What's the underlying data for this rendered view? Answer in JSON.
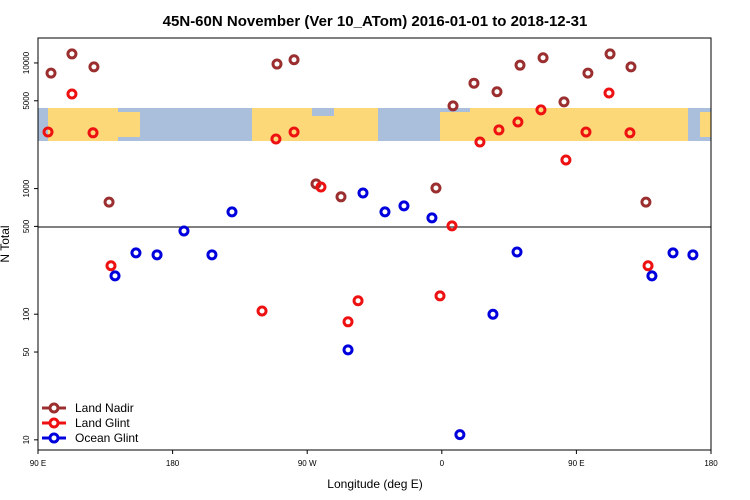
{
  "chart_data": {
    "type": "scatter",
    "title": "45N-60N November (Ver 10_ATom)   2016-01-01 to 2018-12-31",
    "x_label": "Longitude (deg E)",
    "y_label": "N Total",
    "log_y": true,
    "legend": "bottom-left",
    "xlim": [
      90,
      540
    ],
    "xticks": [
      {
        "value": 90,
        "label": "90 E"
      },
      180,
      {
        "value": 270,
        "label": "90 W"
      },
      {
        "value": 360,
        "label": "0"
      },
      {
        "value": 450,
        "label": "90 E"
      },
      {
        "value": 540,
        "label": "180"
      }
    ],
    "ylim": [
      8.3,
      15800
    ],
    "yticks": [
      10,
      50,
      100,
      500,
      1000,
      5000,
      10000
    ],
    "series": [
      {
        "name": "Land Nadir",
        "color": "#9b2f2f",
        "x": [
          98.7,
          112.7,
          127.4,
          137.5,
          249.8,
          261.2,
          275.9,
          292.6,
          356.1,
          367.5,
          381.5,
          396.9,
          412.3,
          427.7,
          441.7,
          457.7,
          472.5,
          486.5,
          496.5
        ],
        "values": [
          8300,
          11800,
          9300,
          780,
          9800,
          10600,
          1090,
          860,
          1010,
          4550,
          6900,
          5900,
          9600,
          11000,
          4900,
          8300,
          11800,
          9300,
          780
        ]
      },
      {
        "name": "Land Glint",
        "color": "#ee1111",
        "x": [
          96.7,
          112.7,
          126.8,
          138.8,
          239.8,
          249.1,
          261.2,
          279.2,
          297.3,
          304.0,
          358.8,
          366.8,
          385.5,
          398.2,
          410.9,
          426.3,
          443.0,
          456.4,
          471.8,
          485.8,
          497.9
        ],
        "values": [
          2820,
          5660,
          2780,
          243,
          106,
          2480,
          2820,
          1030,
          87,
          128,
          140,
          505,
          2350,
          2930,
          3390,
          4230,
          1690,
          2820,
          5770,
          2780,
          243
        ]
      },
      {
        "name": "Ocean Glint",
        "color": "#0000dd",
        "x": [
          141.5,
          155.5,
          169.6,
          187.6,
          206.3,
          219.7,
          297.3,
          307.3,
          322.0,
          334.7,
          353.4,
          372.1,
          394.2,
          410.3,
          500.5,
          514.6,
          527.9
        ],
        "values": [
          202,
          308,
          297,
          460,
          297,
          652,
          52,
          923,
          652,
          728,
          585,
          11,
          100,
          313,
          202,
          308,
          297
        ]
      }
    ]
  }
}
